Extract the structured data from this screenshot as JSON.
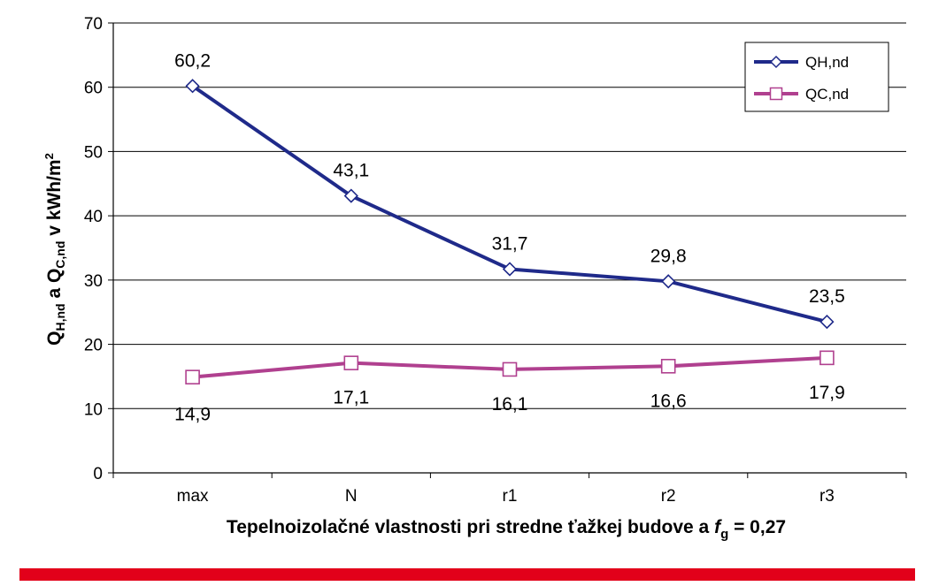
{
  "chart_data": {
    "type": "line",
    "categories": [
      "max",
      "N",
      "r1",
      "r2",
      "r3"
    ],
    "series": [
      {
        "name": "QH,nd",
        "values": [
          60.2,
          43.1,
          31.7,
          29.8,
          23.5
        ],
        "labels": [
          "60,2",
          "43,1",
          "31,7",
          "29,8",
          "23,5"
        ],
        "color": "#1f2a8a",
        "marker": "diamond"
      },
      {
        "name": "QC,nd",
        "values": [
          14.9,
          17.1,
          16.1,
          16.6,
          17.9
        ],
        "labels": [
          "14,9",
          "17,1",
          "16,1",
          "16,6",
          "17,9"
        ],
        "color": "#b0408f",
        "marker": "square"
      }
    ],
    "ylim": [
      0,
      70
    ],
    "yticks": [
      0,
      10,
      20,
      30,
      40,
      50,
      60,
      70
    ],
    "grid": true,
    "legend": "top-right",
    "xlabel": {
      "main": "Tepelnoizolačné vlastnosti pri stredne ťažkej budove a ",
      "var": "f",
      "sub": "g",
      "tail": " = 0,27"
    },
    "ylabel": {
      "q1": "Q",
      "sub1": "H,nd",
      "and": "  a  ",
      "q2": "Q",
      "sub2": "C,nd",
      "tail": " v kWh/m",
      "sup": "2"
    }
  },
  "colors": {
    "bottom_bar": "#e2001a",
    "grid": "#000000"
  }
}
